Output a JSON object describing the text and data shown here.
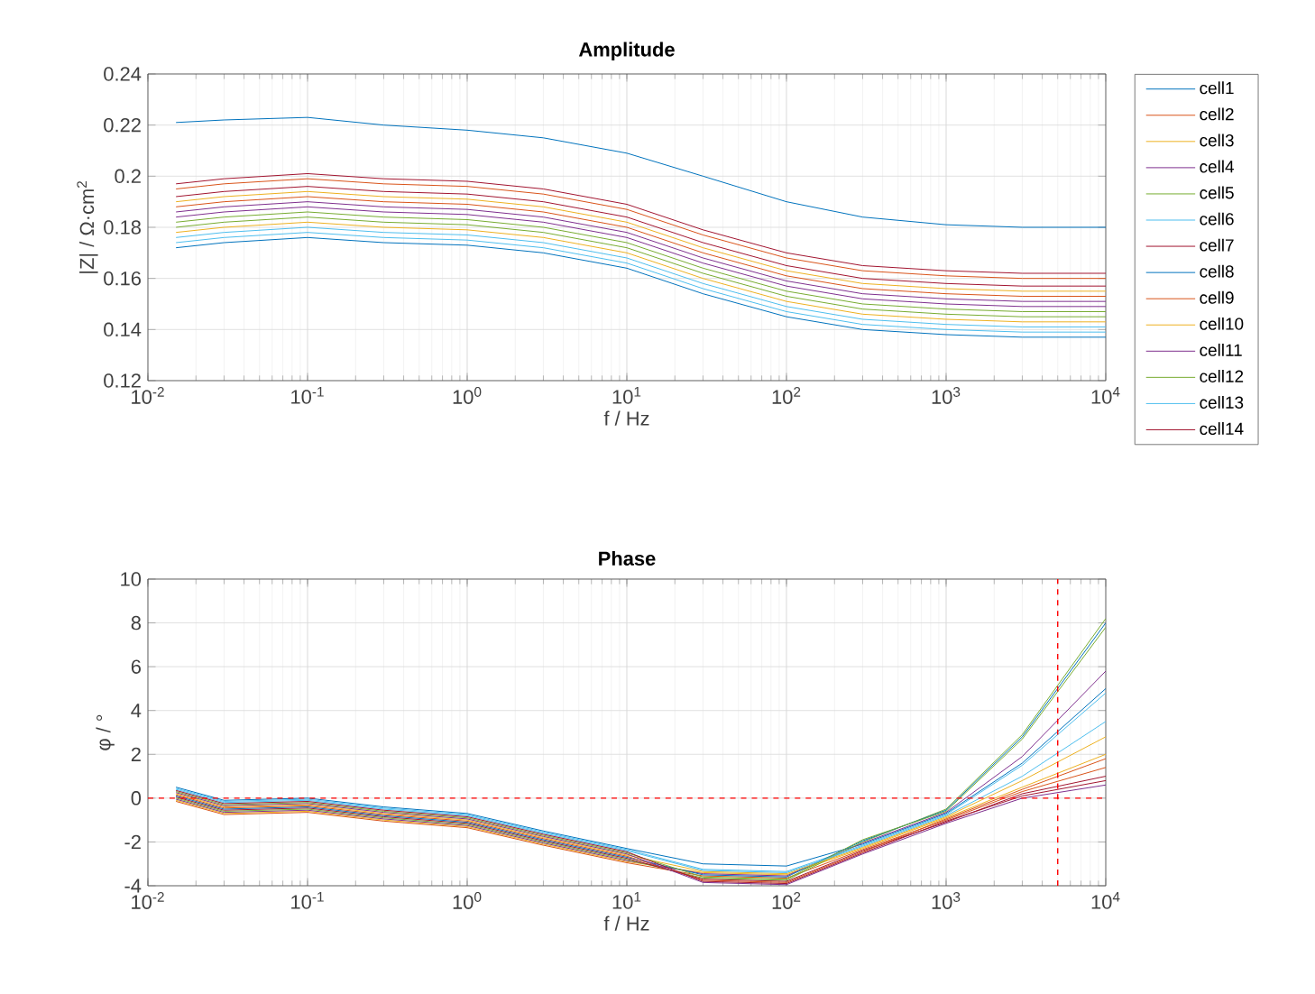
{
  "chart_data": [
    {
      "type": "line",
      "title": "Amplitude",
      "xlabel": "f / Hz",
      "ylabel": "|Z| / Ω·cm$^{2}$",
      "log": "x",
      "grid": true,
      "legend": "right",
      "marker": "none",
      "line_style": "solid",
      "xlim": [
        0.01,
        10000
      ],
      "ylim": [
        0.12,
        0.24
      ],
      "xticks": [
        {
          "value": 0.01,
          "label": "10$^{-2}$"
        },
        {
          "value": 0.1,
          "label": "10$^{-1}$"
        },
        {
          "value": 1,
          "label": "10$^{0}$"
        },
        {
          "value": 10,
          "label": "10$^{1}$"
        },
        {
          "value": 100,
          "label": "10$^{2}$"
        },
        {
          "value": 1000,
          "label": "10$^{3}$"
        },
        {
          "value": 10000,
          "label": "10$^{4}$"
        }
      ],
      "yticks": [
        0.12,
        0.14,
        0.16,
        0.18,
        0.2,
        0.22,
        0.24
      ],
      "x": [
        0.015,
        0.03,
        0.1,
        0.3,
        1,
        3,
        10,
        30,
        100,
        300,
        1000,
        3000,
        10000
      ],
      "series": [
        {
          "name": "cell1",
          "color": "#0072bd",
          "values": [
            0.221,
            0.222,
            0.223,
            0.22,
            0.218,
            0.215,
            0.209,
            0.2,
            0.19,
            0.184,
            0.181,
            0.18,
            0.18
          ]
        },
        {
          "name": "cell2",
          "color": "#d95319",
          "values": [
            0.195,
            0.197,
            0.199,
            0.197,
            0.196,
            0.193,
            0.187,
            0.177,
            0.168,
            0.163,
            0.161,
            0.16,
            0.16
          ]
        },
        {
          "name": "cell3",
          "color": "#edb120",
          "values": [
            0.19,
            0.192,
            0.194,
            0.192,
            0.191,
            0.188,
            0.182,
            0.172,
            0.163,
            0.158,
            0.156,
            0.155,
            0.155
          ]
        },
        {
          "name": "cell4",
          "color": "#7e2f8e",
          "values": [
            0.186,
            0.188,
            0.19,
            0.188,
            0.187,
            0.184,
            0.178,
            0.168,
            0.159,
            0.154,
            0.152,
            0.151,
            0.151
          ]
        },
        {
          "name": "cell5",
          "color": "#77ac30",
          "values": [
            0.182,
            0.184,
            0.186,
            0.184,
            0.183,
            0.18,
            0.174,
            0.164,
            0.155,
            0.15,
            0.148,
            0.147,
            0.147
          ]
        },
        {
          "name": "cell6",
          "color": "#4dbeee",
          "values": [
            0.176,
            0.178,
            0.18,
            0.178,
            0.177,
            0.174,
            0.168,
            0.158,
            0.149,
            0.144,
            0.142,
            0.141,
            0.141
          ]
        },
        {
          "name": "cell7",
          "color": "#a2142f",
          "values": [
            0.197,
            0.199,
            0.201,
            0.199,
            0.198,
            0.195,
            0.189,
            0.179,
            0.17,
            0.165,
            0.163,
            0.162,
            0.162
          ]
        },
        {
          "name": "cell8",
          "color": "#0072bd",
          "values": [
            0.172,
            0.174,
            0.176,
            0.174,
            0.173,
            0.17,
            0.164,
            0.154,
            0.145,
            0.14,
            0.138,
            0.137,
            0.137
          ]
        },
        {
          "name": "cell9",
          "color": "#d95319",
          "values": [
            0.188,
            0.19,
            0.192,
            0.19,
            0.189,
            0.186,
            0.18,
            0.17,
            0.161,
            0.156,
            0.154,
            0.153,
            0.153
          ]
        },
        {
          "name": "cell10",
          "color": "#edb120",
          "values": [
            0.178,
            0.18,
            0.182,
            0.18,
            0.179,
            0.176,
            0.17,
            0.16,
            0.151,
            0.146,
            0.144,
            0.143,
            0.143
          ]
        },
        {
          "name": "cell11",
          "color": "#7e2f8e",
          "values": [
            0.184,
            0.186,
            0.188,
            0.186,
            0.185,
            0.182,
            0.176,
            0.166,
            0.157,
            0.152,
            0.15,
            0.149,
            0.149
          ]
        },
        {
          "name": "cell12",
          "color": "#77ac30",
          "values": [
            0.18,
            0.182,
            0.184,
            0.182,
            0.181,
            0.178,
            0.172,
            0.162,
            0.153,
            0.148,
            0.146,
            0.145,
            0.145
          ]
        },
        {
          "name": "cell13",
          "color": "#4dbeee",
          "values": [
            0.174,
            0.176,
            0.178,
            0.176,
            0.175,
            0.172,
            0.166,
            0.156,
            0.147,
            0.142,
            0.14,
            0.139,
            0.139
          ]
        },
        {
          "name": "cell14",
          "color": "#a2142f",
          "values": [
            0.192,
            0.194,
            0.196,
            0.194,
            0.193,
            0.19,
            0.184,
            0.174,
            0.165,
            0.16,
            0.158,
            0.157,
            0.157
          ]
        }
      ]
    },
    {
      "type": "line",
      "title": "Phase",
      "xlabel": "f / Hz",
      "ylabel": "φ / °",
      "log": "x",
      "grid": true,
      "marker": "none",
      "line_style": "solid",
      "xlim": [
        0.01,
        10000
      ],
      "ylim": [
        -4,
        10
      ],
      "xticks": [
        {
          "value": 0.01,
          "label": "10$^{-2}$"
        },
        {
          "value": 0.1,
          "label": "10$^{-1}$"
        },
        {
          "value": 1,
          "label": "10$^{0}$"
        },
        {
          "value": 10,
          "label": "10$^{1}$"
        },
        {
          "value": 100,
          "label": "10$^{2}$"
        },
        {
          "value": 1000,
          "label": "10$^{3}$"
        },
        {
          "value": 10000,
          "label": "10$^{4}$"
        }
      ],
      "yticks": [
        -4,
        -2,
        0,
        2,
        4,
        6,
        8,
        10
      ],
      "ref_lines": [
        {
          "axis": "y",
          "value": 0,
          "color": "#ff0000",
          "line_style": "dashed"
        },
        {
          "axis": "x",
          "value": 5000,
          "color": "#ff0000",
          "line_style": "dashed"
        }
      ],
      "x": [
        0.015,
        0.03,
        0.1,
        0.3,
        1,
        3,
        10,
        30,
        100,
        300,
        1000,
        3000,
        10000
      ],
      "series": [
        {
          "color": "#0072bd",
          "values": [
            0.5,
            -0.1,
            0.0,
            -0.4,
            -0.7,
            -1.5,
            -2.3,
            -3.0,
            -3.1,
            -2.1,
            -0.7,
            1.6,
            5.0
          ]
        },
        {
          "color": "#d95319",
          "values": [
            -0.15,
            -0.75,
            -0.65,
            -1.05,
            -1.35,
            -2.15,
            -2.95,
            -3.55,
            -3.65,
            -2.35,
            -1.0,
            0.3,
            1.4
          ]
        },
        {
          "color": "#edb120",
          "values": [
            -0.1,
            -0.7,
            -0.6,
            -1.0,
            -1.3,
            -2.1,
            -2.9,
            -3.4,
            -3.5,
            -2.3,
            -0.9,
            0.5,
            2.0
          ]
        },
        {
          "color": "#7e2f8e",
          "values": [
            -0.05,
            -0.65,
            -0.55,
            -0.95,
            -1.25,
            -2.05,
            -2.85,
            -3.45,
            -3.55,
            -2.05,
            -0.65,
            1.9,
            5.8
          ]
        },
        {
          "color": "#77ac30",
          "values": [
            0.0,
            -0.6,
            -0.5,
            -0.9,
            -1.2,
            -2.0,
            -2.8,
            -3.65,
            -3.75,
            -2.0,
            -0.5,
            2.9,
            8.2
          ]
        },
        {
          "color": "#4dbeee",
          "values": [
            0.45,
            -0.15,
            -0.05,
            -0.45,
            -0.75,
            -1.55,
            -2.35,
            -3.25,
            -3.35,
            -2.15,
            -0.75,
            1.5,
            4.8
          ]
        },
        {
          "color": "#a2142f",
          "values": [
            0.05,
            -0.55,
            -0.45,
            -0.85,
            -1.15,
            -1.95,
            -2.75,
            -3.7,
            -3.8,
            -2.4,
            -1.1,
            0.2,
            1.0
          ]
        },
        {
          "color": "#0072bd",
          "values": [
            0.1,
            -0.5,
            -0.4,
            -0.8,
            -1.1,
            -1.9,
            -2.7,
            -3.5,
            -3.6,
            -1.95,
            -0.55,
            2.8,
            8.0
          ]
        },
        {
          "color": "#d95319",
          "values": [
            0.15,
            -0.45,
            -0.35,
            -0.75,
            -1.05,
            -1.85,
            -2.65,
            -3.75,
            -3.85,
            -2.45,
            -0.95,
            0.4,
            1.8
          ]
        },
        {
          "color": "#edb120",
          "values": [
            0.2,
            -0.4,
            -0.3,
            -0.7,
            -1.0,
            -1.8,
            -2.6,
            -3.35,
            -3.45,
            -2.25,
            -0.85,
            0.8,
            2.8
          ]
        },
        {
          "color": "#7e2f8e",
          "values": [
            0.25,
            -0.35,
            -0.25,
            -0.65,
            -0.95,
            -1.75,
            -2.55,
            -3.85,
            -3.95,
            -2.55,
            -1.15,
            0.0,
            0.6
          ]
        },
        {
          "color": "#77ac30",
          "values": [
            0.3,
            -0.3,
            -0.2,
            -0.6,
            -0.9,
            -1.7,
            -2.5,
            -3.6,
            -3.7,
            -1.9,
            -0.6,
            2.7,
            7.8
          ]
        },
        {
          "color": "#4dbeee",
          "values": [
            0.4,
            -0.2,
            -0.1,
            -0.5,
            -0.8,
            -1.6,
            -2.4,
            -3.3,
            -3.4,
            -2.2,
            -0.8,
            1.0,
            3.5
          ]
        },
        {
          "color": "#a2142f",
          "values": [
            0.35,
            -0.25,
            -0.15,
            -0.55,
            -0.85,
            -1.65,
            -2.45,
            -3.8,
            -3.9,
            -2.5,
            -1.05,
            0.1,
            0.8
          ]
        }
      ]
    }
  ]
}
